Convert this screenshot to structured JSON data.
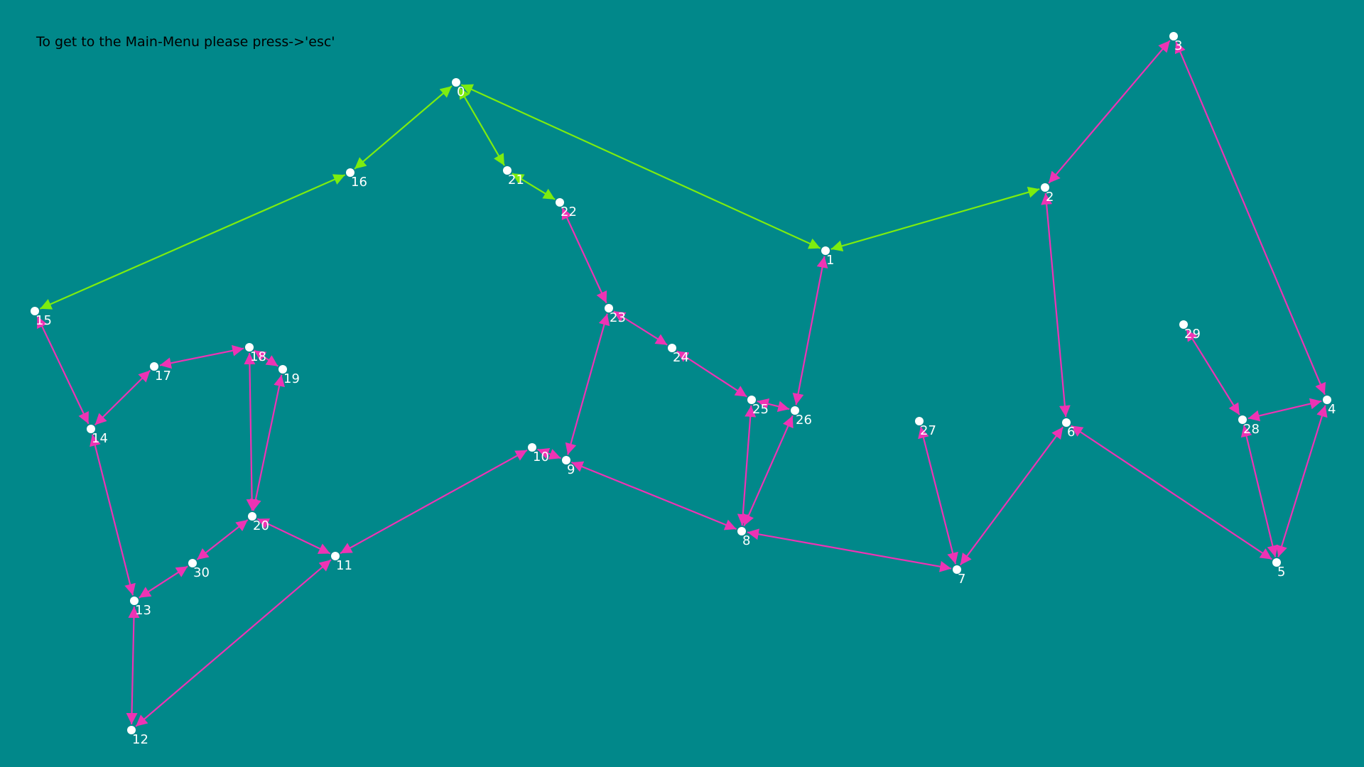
{
  "hint": {
    "text": "To get to the Main-Menu please press->'esc'"
  },
  "colors": {
    "background": "#01888a",
    "edge_default": "#ee33b4",
    "edge_path": "#7ded0f",
    "node_fill": "#ffffff",
    "label": "#ffffff",
    "hint_text": "#000000"
  },
  "graph": {
    "nodes": [
      {
        "id": "0",
        "label": "0"
      },
      {
        "id": "1",
        "label": "1"
      },
      {
        "id": "2",
        "label": "2"
      },
      {
        "id": "3",
        "label": "3"
      },
      {
        "id": "4",
        "label": "4"
      },
      {
        "id": "5",
        "label": "5"
      },
      {
        "id": "6",
        "label": "6"
      },
      {
        "id": "7",
        "label": "7"
      },
      {
        "id": "8",
        "label": "8"
      },
      {
        "id": "9",
        "label": "9"
      },
      {
        "id": "10",
        "label": "10"
      },
      {
        "id": "11",
        "label": "11"
      },
      {
        "id": "12",
        "label": "12"
      },
      {
        "id": "13",
        "label": "13"
      },
      {
        "id": "14",
        "label": "14"
      },
      {
        "id": "15",
        "label": "15"
      },
      {
        "id": "16",
        "label": "16"
      },
      {
        "id": "17",
        "label": "17"
      },
      {
        "id": "18",
        "label": "18"
      },
      {
        "id": "19",
        "label": "19"
      },
      {
        "id": "20",
        "label": "20"
      },
      {
        "id": "21",
        "label": "21"
      },
      {
        "id": "22",
        "label": "22"
      },
      {
        "id": "23",
        "label": "23"
      },
      {
        "id": "24",
        "label": "24"
      },
      {
        "id": "25",
        "label": "25"
      },
      {
        "id": "26",
        "label": "26"
      },
      {
        "id": "27",
        "label": "27"
      },
      {
        "id": "28",
        "label": "28"
      },
      {
        "id": "29",
        "label": "29"
      },
      {
        "id": "30",
        "label": "30"
      }
    ],
    "edges": [
      {
        "from": "15",
        "to": "16",
        "bidirectional": true,
        "path": true
      },
      {
        "from": "16",
        "to": "0",
        "bidirectional": true,
        "path": true
      },
      {
        "from": "0",
        "to": "21",
        "bidirectional": true,
        "path": true
      },
      {
        "from": "21",
        "to": "22",
        "bidirectional": true,
        "path": true
      },
      {
        "from": "0",
        "to": "1",
        "bidirectional": true,
        "path": true
      },
      {
        "from": "1",
        "to": "2",
        "bidirectional": true,
        "path": true
      },
      {
        "from": "3",
        "to": "2",
        "bidirectional": true,
        "path": false
      },
      {
        "from": "3",
        "to": "4",
        "bidirectional": true,
        "path": false
      },
      {
        "from": "2",
        "to": "6",
        "bidirectional": true,
        "path": false
      },
      {
        "from": "1",
        "to": "26",
        "bidirectional": true,
        "path": false
      },
      {
        "from": "22",
        "to": "23",
        "bidirectional": true,
        "path": false
      },
      {
        "from": "23",
        "to": "24",
        "bidirectional": true,
        "path": false
      },
      {
        "from": "24",
        "to": "25",
        "bidirectional": true,
        "path": false
      },
      {
        "from": "25",
        "to": "26",
        "bidirectional": true,
        "path": false
      },
      {
        "from": "23",
        "to": "9",
        "bidirectional": true,
        "path": false
      },
      {
        "from": "25",
        "to": "8",
        "bidirectional": true,
        "path": false
      },
      {
        "from": "26",
        "to": "8",
        "bidirectional": true,
        "path": false
      },
      {
        "from": "9",
        "to": "8",
        "bidirectional": true,
        "path": false
      },
      {
        "from": "10",
        "to": "9",
        "bidirectional": true,
        "path": false
      },
      {
        "from": "8",
        "to": "7",
        "bidirectional": true,
        "path": false
      },
      {
        "from": "27",
        "to": "7",
        "bidirectional": true,
        "path": false
      },
      {
        "from": "6",
        "to": "7",
        "bidirectional": true,
        "path": false
      },
      {
        "from": "6",
        "to": "5",
        "bidirectional": true,
        "path": false
      },
      {
        "from": "4",
        "to": "5",
        "bidirectional": true,
        "path": false
      },
      {
        "from": "28",
        "to": "4",
        "bidirectional": true,
        "path": false
      },
      {
        "from": "28",
        "to": "5",
        "bidirectional": true,
        "path": false
      },
      {
        "from": "29",
        "to": "28",
        "bidirectional": true,
        "path": false
      },
      {
        "from": "10",
        "to": "11",
        "bidirectional": true,
        "path": false
      },
      {
        "from": "20",
        "to": "11",
        "bidirectional": true,
        "path": false
      },
      {
        "from": "11",
        "to": "12",
        "bidirectional": true,
        "path": false
      },
      {
        "from": "13",
        "to": "12",
        "bidirectional": true,
        "path": false
      },
      {
        "from": "14",
        "to": "13",
        "bidirectional": true,
        "path": false
      },
      {
        "from": "15",
        "to": "14",
        "bidirectional": true,
        "path": false
      },
      {
        "from": "17",
        "to": "14",
        "bidirectional": true,
        "path": false
      },
      {
        "from": "17",
        "to": "18",
        "bidirectional": true,
        "path": false
      },
      {
        "from": "18",
        "to": "19",
        "bidirectional": true,
        "path": false
      },
      {
        "from": "18",
        "to": "20",
        "bidirectional": true,
        "path": false
      },
      {
        "from": "19",
        "to": "20",
        "bidirectional": true,
        "path": false
      },
      {
        "from": "20",
        "to": "30",
        "bidirectional": true,
        "path": false
      },
      {
        "from": "30",
        "to": "13",
        "bidirectional": true,
        "path": false
      }
    ]
  }
}
